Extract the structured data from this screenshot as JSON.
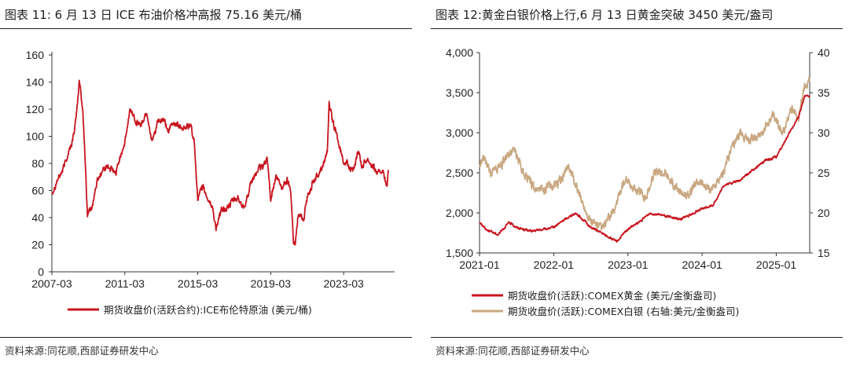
{
  "colors": {
    "red": "#c8141e",
    "tan": "#c9a882",
    "axis": "#333333",
    "text": "#222222"
  },
  "left": {
    "title": "图表 11:  6 月 13 日 ICE 布油价格冲高报 75.16 美元/桶",
    "source": "资料来源:同花顺,西部证券研发中心",
    "legend_label": "期货收盘价(活跃合约):ICE布伦特原油 (美元/桶)"
  },
  "right": {
    "title": "图表 12:黄金白银价格上行,6 月 13 日黄金突破 3450 美元/盎司",
    "source": "资料来源:同花顺,西部证券研发中心",
    "legend_gold": "期货收盘价(活跃):COMEX黄金 (美元/金衡盎司)",
    "legend_silver": "期货收盘价(活跃):COMEX白银 (右轴:美元/金衡盎司)"
  },
  "chart_data": [
    {
      "type": "line",
      "title": "ICE Brent crude front-month close",
      "x_ticks": [
        "2007-03",
        "2011-03",
        "2015-03",
        "2019-03",
        "2023-03"
      ],
      "x_range": [
        2007.0,
        2025.45
      ],
      "y_ticks": [
        "0",
        "20",
        "40",
        "60",
        "80",
        "100",
        "120",
        "140",
        "160"
      ],
      "ylim": [
        0,
        160
      ],
      "series": [
        {
          "name": "期货收盘价(活跃合约):ICE布伦特原油 (美元/桶)",
          "color": "#c8141e",
          "x": [
            2007.0,
            2007.3,
            2007.6,
            2007.9,
            2008.1,
            2008.3,
            2008.5,
            2008.7,
            2008.85,
            2008.95,
            2009.0,
            2009.2,
            2009.5,
            2009.8,
            2010.0,
            2010.3,
            2010.5,
            2010.8,
            2011.0,
            2011.3,
            2011.6,
            2011.9,
            2012.2,
            2012.5,
            2012.8,
            2013.1,
            2013.4,
            2013.7,
            2014.0,
            2014.3,
            2014.6,
            2014.8,
            2015.0,
            2015.3,
            2015.5,
            2015.8,
            2016.0,
            2016.3,
            2016.6,
            2016.9,
            2017.2,
            2017.5,
            2017.8,
            2018.0,
            2018.3,
            2018.6,
            2018.8,
            2019.0,
            2019.3,
            2019.6,
            2019.9,
            2020.1,
            2020.25,
            2020.35,
            2020.5,
            2020.8,
            2021.0,
            2021.3,
            2021.6,
            2021.9,
            2022.1,
            2022.2,
            2022.4,
            2022.6,
            2022.8,
            2023.0,
            2023.3,
            2023.6,
            2023.8,
            2024.0,
            2024.3,
            2024.6,
            2024.9,
            2025.1,
            2025.3,
            2025.38,
            2025.45
          ],
          "values": [
            58,
            68,
            75,
            88,
            95,
            110,
            140,
            118,
            75,
            42,
            44,
            48,
            68,
            75,
            78,
            75,
            72,
            88,
            95,
            120,
            112,
            108,
            118,
            95,
            110,
            112,
            104,
            110,
            108,
            106,
            108,
            96,
            55,
            62,
            55,
            48,
            32,
            45,
            47,
            52,
            54,
            48,
            58,
            68,
            75,
            78,
            84,
            55,
            70,
            62,
            68,
            60,
            23,
            20,
            42,
            40,
            55,
            66,
            72,
            80,
            90,
            125,
            110,
            102,
            90,
            82,
            78,
            75,
            90,
            78,
            84,
            78,
            72,
            76,
            66,
            62,
            75.16
          ]
        }
      ]
    },
    {
      "type": "line",
      "title": "COMEX gold (left axis) and silver (right axis)",
      "x_ticks": [
        "2021-01",
        "2022-01",
        "2023-01",
        "2024-01",
        "2025-01"
      ],
      "x_range": [
        2021.0,
        2025.45
      ],
      "y_left_ticks": [
        "1,500",
        "2,000",
        "2,500",
        "3,000",
        "3,500",
        "4,000"
      ],
      "ylim_left": [
        1500,
        4000
      ],
      "y_right_ticks": [
        "15",
        "20",
        "25",
        "30",
        "35",
        "40"
      ],
      "ylim_right": [
        15,
        40
      ],
      "series": [
        {
          "name": "期货收盘价(活跃):COMEX黄金 (美元/金衡盎司)",
          "axis": "left",
          "color": "#c8141e",
          "x": [
            2021.0,
            2021.1,
            2021.25,
            2021.4,
            2021.5,
            2021.7,
            2021.9,
            2022.0,
            2022.15,
            2022.3,
            2022.5,
            2022.7,
            2022.85,
            2023.0,
            2023.15,
            2023.3,
            2023.5,
            2023.7,
            2023.85,
            2024.0,
            2024.15,
            2024.3,
            2024.5,
            2024.7,
            2024.85,
            2025.0,
            2025.15,
            2025.3,
            2025.38,
            2025.45
          ],
          "values": [
            1880,
            1790,
            1730,
            1880,
            1820,
            1770,
            1800,
            1820,
            1920,
            2000,
            1820,
            1720,
            1640,
            1800,
            1880,
            2000,
            1960,
            1920,
            1980,
            2050,
            2100,
            2350,
            2400,
            2550,
            2650,
            2700,
            2950,
            3200,
            3450,
            3452
          ]
        },
        {
          "name": "期货收盘价(活跃):COMEX白银 (右轴:美元/金衡盎司)",
          "axis": "right",
          "color": "#c9a882",
          "x": [
            2021.0,
            2021.05,
            2021.15,
            2021.3,
            2021.45,
            2021.6,
            2021.75,
            2021.9,
            2022.1,
            2022.2,
            2022.35,
            2022.5,
            2022.65,
            2022.8,
            2022.95,
            2023.1,
            2023.25,
            2023.35,
            2023.5,
            2023.65,
            2023.8,
            2023.95,
            2024.1,
            2024.25,
            2024.35,
            2024.5,
            2024.65,
            2024.8,
            2024.95,
            2025.1,
            2025.2,
            2025.3,
            2025.38,
            2025.45
          ],
          "values": [
            26,
            27,
            25,
            26,
            28,
            25,
            23,
            23,
            24,
            26,
            22,
            19,
            18,
            20,
            24,
            23,
            22,
            25,
            25,
            23,
            22,
            24,
            23,
            24,
            27,
            30,
            29,
            30,
            32,
            30,
            33,
            32,
            36,
            36.5
          ]
        }
      ]
    }
  ]
}
